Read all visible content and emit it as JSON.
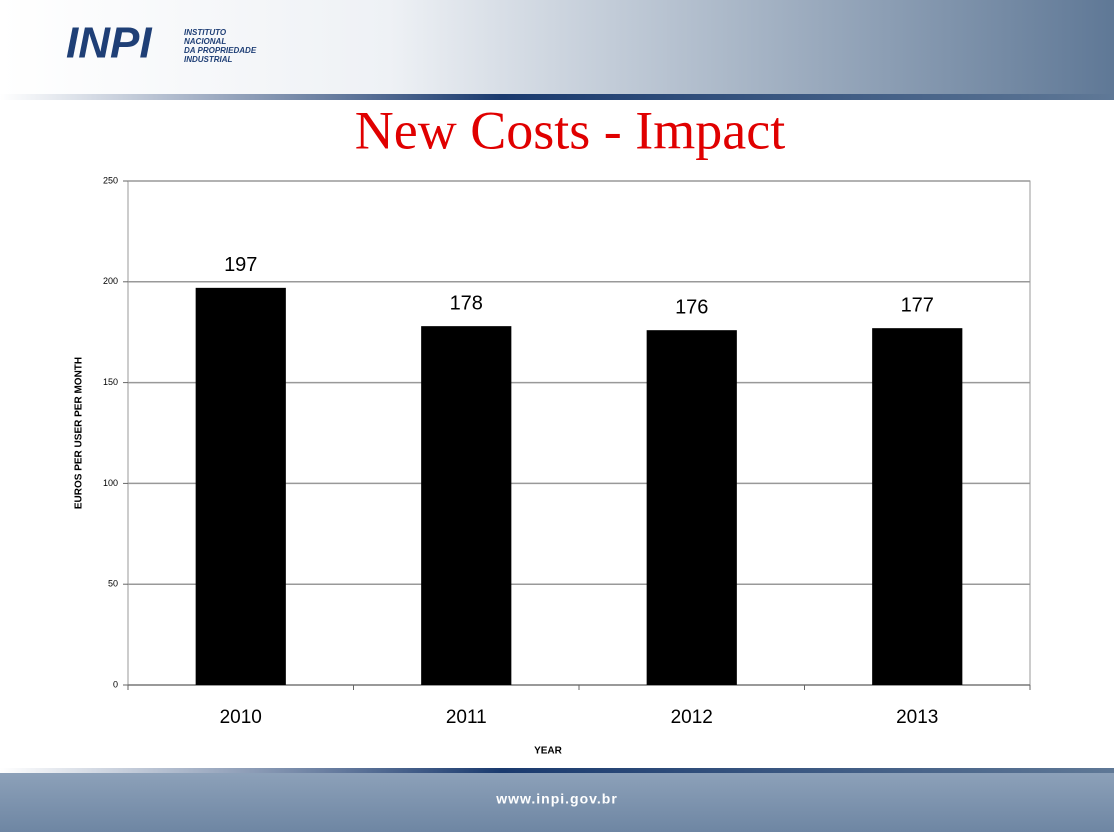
{
  "header": {
    "logo": "INPI",
    "org_lines": [
      "INSTITUTO",
      "NACIONAL",
      "DA PROPRIEDADE",
      "INDUSTRIAL"
    ]
  },
  "chart_data": {
    "type": "bar",
    "title": "New Costs - Impact",
    "categories": [
      "2010",
      "2011",
      "2012",
      "2013"
    ],
    "values": [
      197,
      178,
      176,
      177
    ],
    "color": "#000000",
    "ylim": [
      0,
      250
    ],
    "yticks": [
      0,
      50,
      100,
      150,
      200,
      250
    ],
    "grid": true,
    "xlabel": "YEAR",
    "ylabel": "EUROS PER USER PER MONTH"
  },
  "footer": {
    "url": "www.inpi.gov.br"
  }
}
